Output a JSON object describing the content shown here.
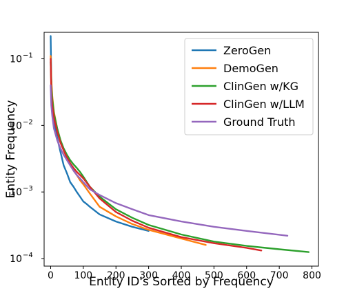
{
  "chart_data": {
    "type": "line",
    "xlabel": "Entity ID's Sorted by Frequency",
    "ylabel": "Entity Frequency",
    "xlim": [
      -20,
      820
    ],
    "ylim": [
      0.0001,
      0.25
    ],
    "yscale": "log",
    "xticks": [
      0,
      100,
      200,
      300,
      400,
      500,
      600,
      700,
      800
    ],
    "yticks": [
      {
        "value": 0.1,
        "base": "10",
        "exp": "−1"
      },
      {
        "value": 0.01,
        "base": "10",
        "exp": "−2"
      },
      {
        "value": 0.001,
        "base": "10",
        "exp": "−3"
      },
      {
        "value": 0.0001,
        "base": "10",
        "exp": "−4"
      }
    ],
    "grid": false,
    "legend_position": "top-right",
    "series": [
      {
        "name": "ZeroGen",
        "color": "#1f77b4",
        "x": [
          0,
          2,
          5,
          10,
          20,
          30,
          40,
          50,
          60,
          70,
          80,
          90,
          100,
          110,
          120,
          150,
          200,
          250,
          300
        ],
        "y": [
          0.22,
          0.05,
          0.02,
          0.012,
          0.0065,
          0.004,
          0.0025,
          0.0019,
          0.0014,
          0.0012,
          0.001,
          0.00085,
          0.00072,
          0.00066,
          0.0006,
          0.00046,
          0.00036,
          0.0003,
          0.00026
        ]
      },
      {
        "name": "DemoGen",
        "color": "#ff7f0e",
        "x": [
          0,
          2,
          5,
          10,
          20,
          30,
          40,
          50,
          60,
          70,
          80,
          90,
          100,
          120,
          150,
          200,
          250,
          300,
          400,
          475
        ],
        "y": [
          0.11,
          0.05,
          0.028,
          0.016,
          0.009,
          0.006,
          0.0042,
          0.0032,
          0.0026,
          0.0021,
          0.0018,
          0.0015,
          0.0013,
          0.00095,
          0.0006,
          0.00043,
          0.00033,
          0.00027,
          0.0002,
          0.00016
        ]
      },
      {
        "name": "ClinGen w/KG",
        "color": "#2ca02c",
        "x": [
          0,
          2,
          5,
          10,
          20,
          30,
          40,
          50,
          60,
          70,
          80,
          90,
          100,
          120,
          150,
          200,
          250,
          300,
          400,
          500,
          600,
          700,
          790
        ],
        "y": [
          0.09,
          0.04,
          0.025,
          0.015,
          0.009,
          0.006,
          0.0045,
          0.0036,
          0.003,
          0.0026,
          0.0023,
          0.002,
          0.0017,
          0.0012,
          0.00085,
          0.00055,
          0.00041,
          0.00032,
          0.00023,
          0.00018,
          0.000155,
          0.000138,
          0.000125
        ]
      },
      {
        "name": "ClinGen w/LLM",
        "color": "#d62728",
        "x": [
          0,
          2,
          5,
          10,
          20,
          30,
          40,
          50,
          60,
          70,
          80,
          90,
          100,
          120,
          150,
          200,
          250,
          300,
          400,
          500,
          600,
          645
        ],
        "y": [
          0.1,
          0.03,
          0.02,
          0.013,
          0.008,
          0.0055,
          0.0042,
          0.0033,
          0.0027,
          0.0023,
          0.002,
          0.0018,
          0.0016,
          0.0012,
          0.0008,
          0.0005,
          0.00037,
          0.00029,
          0.00021,
          0.00017,
          0.000145,
          0.000132
        ]
      },
      {
        "name": "Ground Truth",
        "color": "#9467bd",
        "x": [
          0,
          2,
          5,
          10,
          20,
          30,
          40,
          50,
          60,
          70,
          80,
          90,
          100,
          120,
          150,
          200,
          250,
          300,
          400,
          500,
          600,
          725
        ],
        "y": [
          0.04,
          0.02,
          0.014,
          0.009,
          0.006,
          0.0045,
          0.0036,
          0.003,
          0.0025,
          0.0021,
          0.0018,
          0.0016,
          0.0014,
          0.0011,
          0.0009,
          0.00068,
          0.00055,
          0.00045,
          0.00036,
          0.0003,
          0.00026,
          0.00022
        ]
      }
    ]
  }
}
